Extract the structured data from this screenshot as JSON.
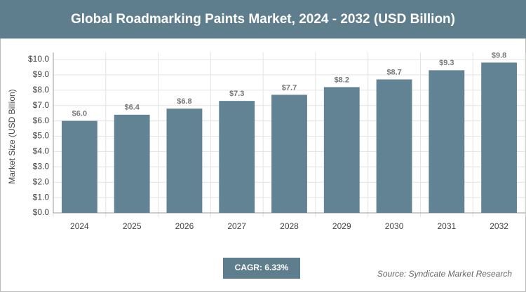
{
  "chart_data": {
    "type": "bar",
    "title": "Global Roadmarking Paints Market, 2024 - 2032 (USD Billion)",
    "y_label": "Market Size (USD Billion)",
    "categories": [
      "2024",
      "2025",
      "2026",
      "2027",
      "2028",
      "2029",
      "2030",
      "2031",
      "2032"
    ],
    "values": [
      6.0,
      6.4,
      6.8,
      7.3,
      7.7,
      8.2,
      8.7,
      9.3,
      9.8
    ],
    "value_labels": [
      "$6.0",
      "$6.4",
      "$6.8",
      "$7.3",
      "$7.7",
      "$8.2",
      "$8.7",
      "$9.3",
      "$9.8"
    ],
    "color": "#628393",
    "ylim": [
      0,
      10
    ],
    "yticks": [
      {
        "value": 0,
        "label": "$0.0"
      },
      {
        "value": 1,
        "label": "$1.0"
      },
      {
        "value": 2,
        "label": "$2.0"
      },
      {
        "value": 3,
        "label": "$3.0"
      },
      {
        "value": 4,
        "label": "$4.0"
      },
      {
        "value": 5,
        "label": "$5.0"
      },
      {
        "value": 6,
        "label": "$6.0"
      },
      {
        "value": 7,
        "label": "$7.0"
      },
      {
        "value": 8,
        "label": "$8.0"
      },
      {
        "value": 9,
        "label": "$9.0"
      },
      {
        "value": 10,
        "label": "$10.0"
      }
    ],
    "grid": true,
    "cagr": "CAGR: 6.33%",
    "source": "Source: Syndicate Market Research"
  }
}
